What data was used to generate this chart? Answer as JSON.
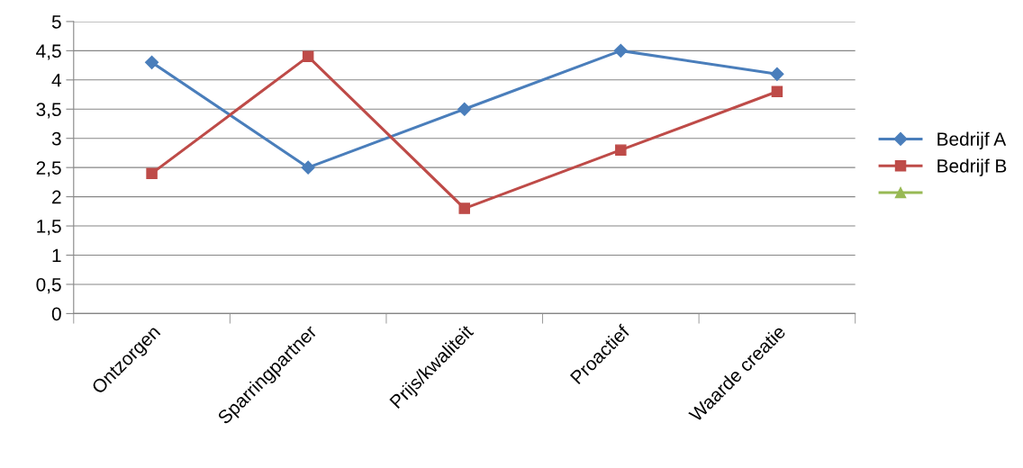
{
  "chart_data": {
    "type": "line",
    "categories": [
      "Ontzorgen",
      "Sparringpartner",
      "Prijs/kwaliteit",
      "Proactief",
      "Waarde creatie"
    ],
    "series": [
      {
        "name": "Bedrijf A",
        "color": "#4a7ebb",
        "marker": "diamond",
        "values": [
          4.3,
          2.5,
          3.5,
          4.5,
          4.1
        ]
      },
      {
        "name": "Bedrijf B",
        "color": "#be4b48",
        "marker": "square",
        "values": [
          2.4,
          4.4,
          1.8,
          2.8,
          3.8
        ]
      },
      {
        "color": "#98b954",
        "marker": "triangle",
        "values": [
          null,
          null,
          null,
          null,
          null
        ]
      }
    ],
    "ylim": [
      0,
      5
    ],
    "yticks": [
      0,
      {
        "value": 0.5,
        "label": "0,5"
      },
      1,
      {
        "value": 1.5,
        "label": "1,5"
      },
      2,
      {
        "value": 2.5,
        "label": "2,5"
      },
      3,
      {
        "value": 3.5,
        "label": "3,5"
      },
      4,
      {
        "value": 4.5,
        "label": "4,5"
      },
      5
    ],
    "grid": "y",
    "legend": "right",
    "line_style": "solid"
  }
}
